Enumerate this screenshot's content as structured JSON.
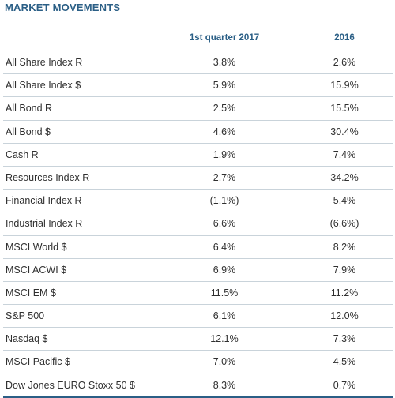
{
  "title": "MARKET MOVEMENTS",
  "columns": [
    "",
    "1st quarter 2017",
    "2016"
  ],
  "rows": [
    {
      "label": "All Share Index R",
      "q1_2017": "3.8%",
      "y2016": "2.6%"
    },
    {
      "label": "All Share Index $",
      "q1_2017": "5.9%",
      "y2016": "15.9%"
    },
    {
      "label": "All Bond R",
      "q1_2017": "2.5%",
      "y2016": "15.5%"
    },
    {
      "label": "All Bond $",
      "q1_2017": "4.6%",
      "y2016": "30.4%"
    },
    {
      "label": "Cash R",
      "q1_2017": "1.9%",
      "y2016": "7.4%"
    },
    {
      "label": "Resources Index R",
      "q1_2017": "2.7%",
      "y2016": "34.2%"
    },
    {
      "label": "Financial Index R",
      "q1_2017": "(1.1%)",
      "y2016": "5.4%"
    },
    {
      "label": "Industrial Index R",
      "q1_2017": "6.6%",
      "y2016": "(6.6%)"
    },
    {
      "label": "MSCI World $",
      "q1_2017": "6.4%",
      "y2016": "8.2%"
    },
    {
      "label": "MSCI ACWI $",
      "q1_2017": "6.9%",
      "y2016": "7.9%"
    },
    {
      "label": "MSCI EM $",
      "q1_2017": "11.5%",
      "y2016": "11.2%"
    },
    {
      "label": "S&P 500",
      "q1_2017": "6.1%",
      "y2016": "12.0%"
    },
    {
      "label": "Nasdaq $",
      "q1_2017": "12.1%",
      "y2016": "7.3%"
    },
    {
      "label": "MSCI Pacific $",
      "q1_2017": "7.0%",
      "y2016": "4.5%"
    },
    {
      "label": "Dow Jones EURO Stoxx 50 $",
      "q1_2017": "8.3%",
      "y2016": "0.7%"
    }
  ]
}
